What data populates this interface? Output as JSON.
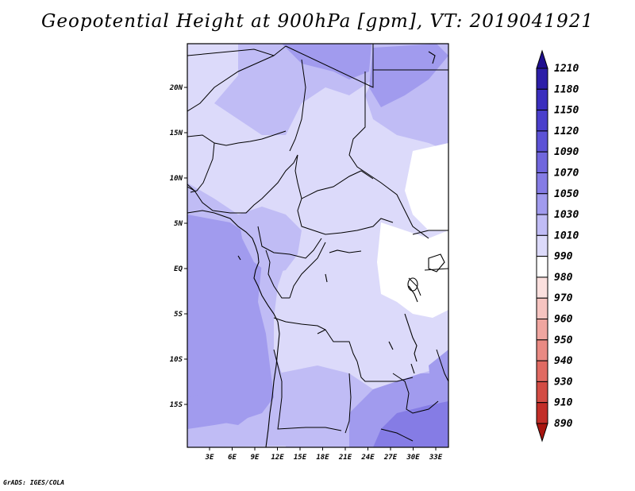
{
  "title": "Geopotential Height at 900hPa [gpm], VT: 2019041921",
  "credit": "GrADS: IGES/COLA",
  "lat_labels": [
    "20N",
    "15N",
    "10N",
    "5N",
    "EQ",
    "5S",
    "10S",
    "15S"
  ],
  "lon_labels": [
    "3E",
    "6E",
    "9E",
    "12E",
    "15E",
    "18E",
    "21E",
    "24E",
    "27E",
    "30E",
    "33E"
  ],
  "colorbar": {
    "levels": [
      "1210",
      "1180",
      "1150",
      "1120",
      "1090",
      "1070",
      "1050",
      "1030",
      "1010",
      "990",
      "980",
      "970",
      "960",
      "950",
      "940",
      "930",
      "910",
      "890"
    ],
    "colors": [
      "#1f0f8f",
      "#2c1ea8",
      "#3a2ebe",
      "#4a3fcc",
      "#5c52d6",
      "#7066dd",
      "#857ce5",
      "#a19bee",
      "#c0bcf5",
      "#dcdafa",
      "#ffffff",
      "#fbe0de",
      "#f6c4c0",
      "#f0a6a0",
      "#e98a83",
      "#e06a62",
      "#d34c44",
      "#c22e28",
      "#a8150f"
    ]
  },
  "colors": {
    "field_light": "#dcdafa",
    "field_mid": "#c0bcf5",
    "field_dark": "#a19bee",
    "field_darker": "#857ce5"
  }
}
